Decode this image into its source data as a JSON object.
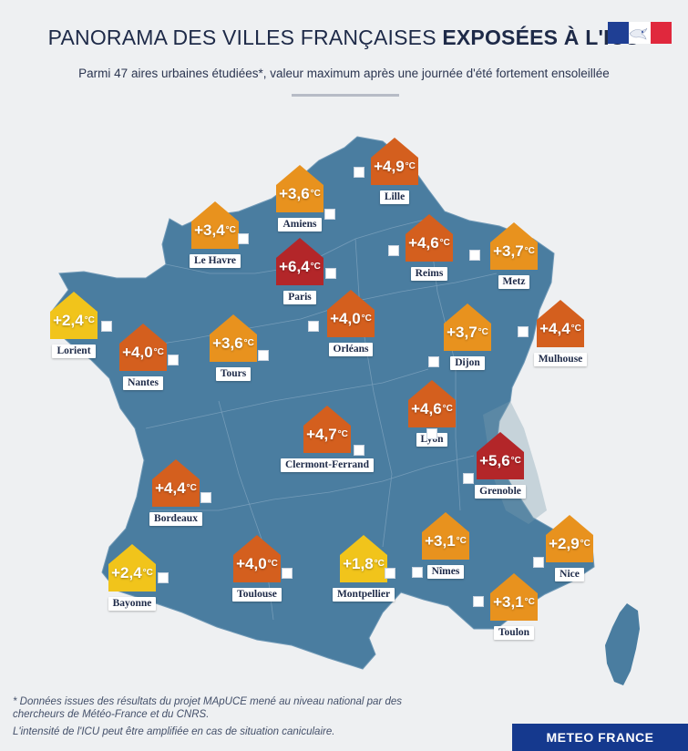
{
  "header": {
    "title_light": "PANORAMA DES VILLES FRANÇAISES",
    "title_bold": "EXPOSÉES À L'ICU",
    "subtitle": "Parmi 47 aires urbaines étudiées*, valeur maximum après une journée d'été fortement ensoleillée"
  },
  "unit": "°C",
  "colors": {
    "map": "#4a7da0",
    "background": "#eef0f2",
    "brand": "#15398e",
    "scale": {
      "low": "#f1c41b",
      "mid": "#e8921e",
      "high": "#d45f1e",
      "max": "#b32629"
    }
  },
  "cities": [
    {
      "name": "Lille",
      "value": "+4,9",
      "level": "high"
    },
    {
      "name": "Amiens",
      "value": "+3,6",
      "level": "mid"
    },
    {
      "name": "Le Havre",
      "value": "+3,4",
      "level": "mid"
    },
    {
      "name": "Paris",
      "value": "+6,4",
      "level": "max"
    },
    {
      "name": "Reims",
      "value": "+4,6",
      "level": "high"
    },
    {
      "name": "Metz",
      "value": "+3,7",
      "level": "mid"
    },
    {
      "name": "Lorient",
      "value": "+2,4",
      "level": "low"
    },
    {
      "name": "Nantes",
      "value": "+4,0",
      "level": "high"
    },
    {
      "name": "Tours",
      "value": "+3,6",
      "level": "mid"
    },
    {
      "name": "Orléans",
      "value": "+4,0",
      "level": "high"
    },
    {
      "name": "Dijon",
      "value": "+3,7",
      "level": "mid"
    },
    {
      "name": "Mulhouse",
      "value": "+4,4",
      "level": "high"
    },
    {
      "name": "Lyon",
      "value": "+4,6",
      "level": "high"
    },
    {
      "name": "Clermont-Ferrand",
      "value": "+4,7",
      "level": "high"
    },
    {
      "name": "Grenoble",
      "value": "+5,6",
      "level": "max"
    },
    {
      "name": "Bordeaux",
      "value": "+4,4",
      "level": "high"
    },
    {
      "name": "Nîmes",
      "value": "+3,1",
      "level": "mid"
    },
    {
      "name": "Nice",
      "value": "+2,9",
      "level": "mid"
    },
    {
      "name": "Bayonne",
      "value": "+2,4",
      "level": "low"
    },
    {
      "name": "Toulouse",
      "value": "+4,0",
      "level": "high"
    },
    {
      "name": "Montpellier",
      "value": "+1,8",
      "level": "low"
    },
    {
      "name": "Toulon",
      "value": "+3,1",
      "level": "mid"
    }
  ],
  "footer": {
    "note": "* Données issues des résultats du projet MApUCE mené au niveau national par des chercheurs de Météo-France et du CNRS.",
    "note2": "L'intensité de l'ICU peut être amplifiée en cas de situation caniculaire.",
    "brand": "METEO FRANCE"
  }
}
